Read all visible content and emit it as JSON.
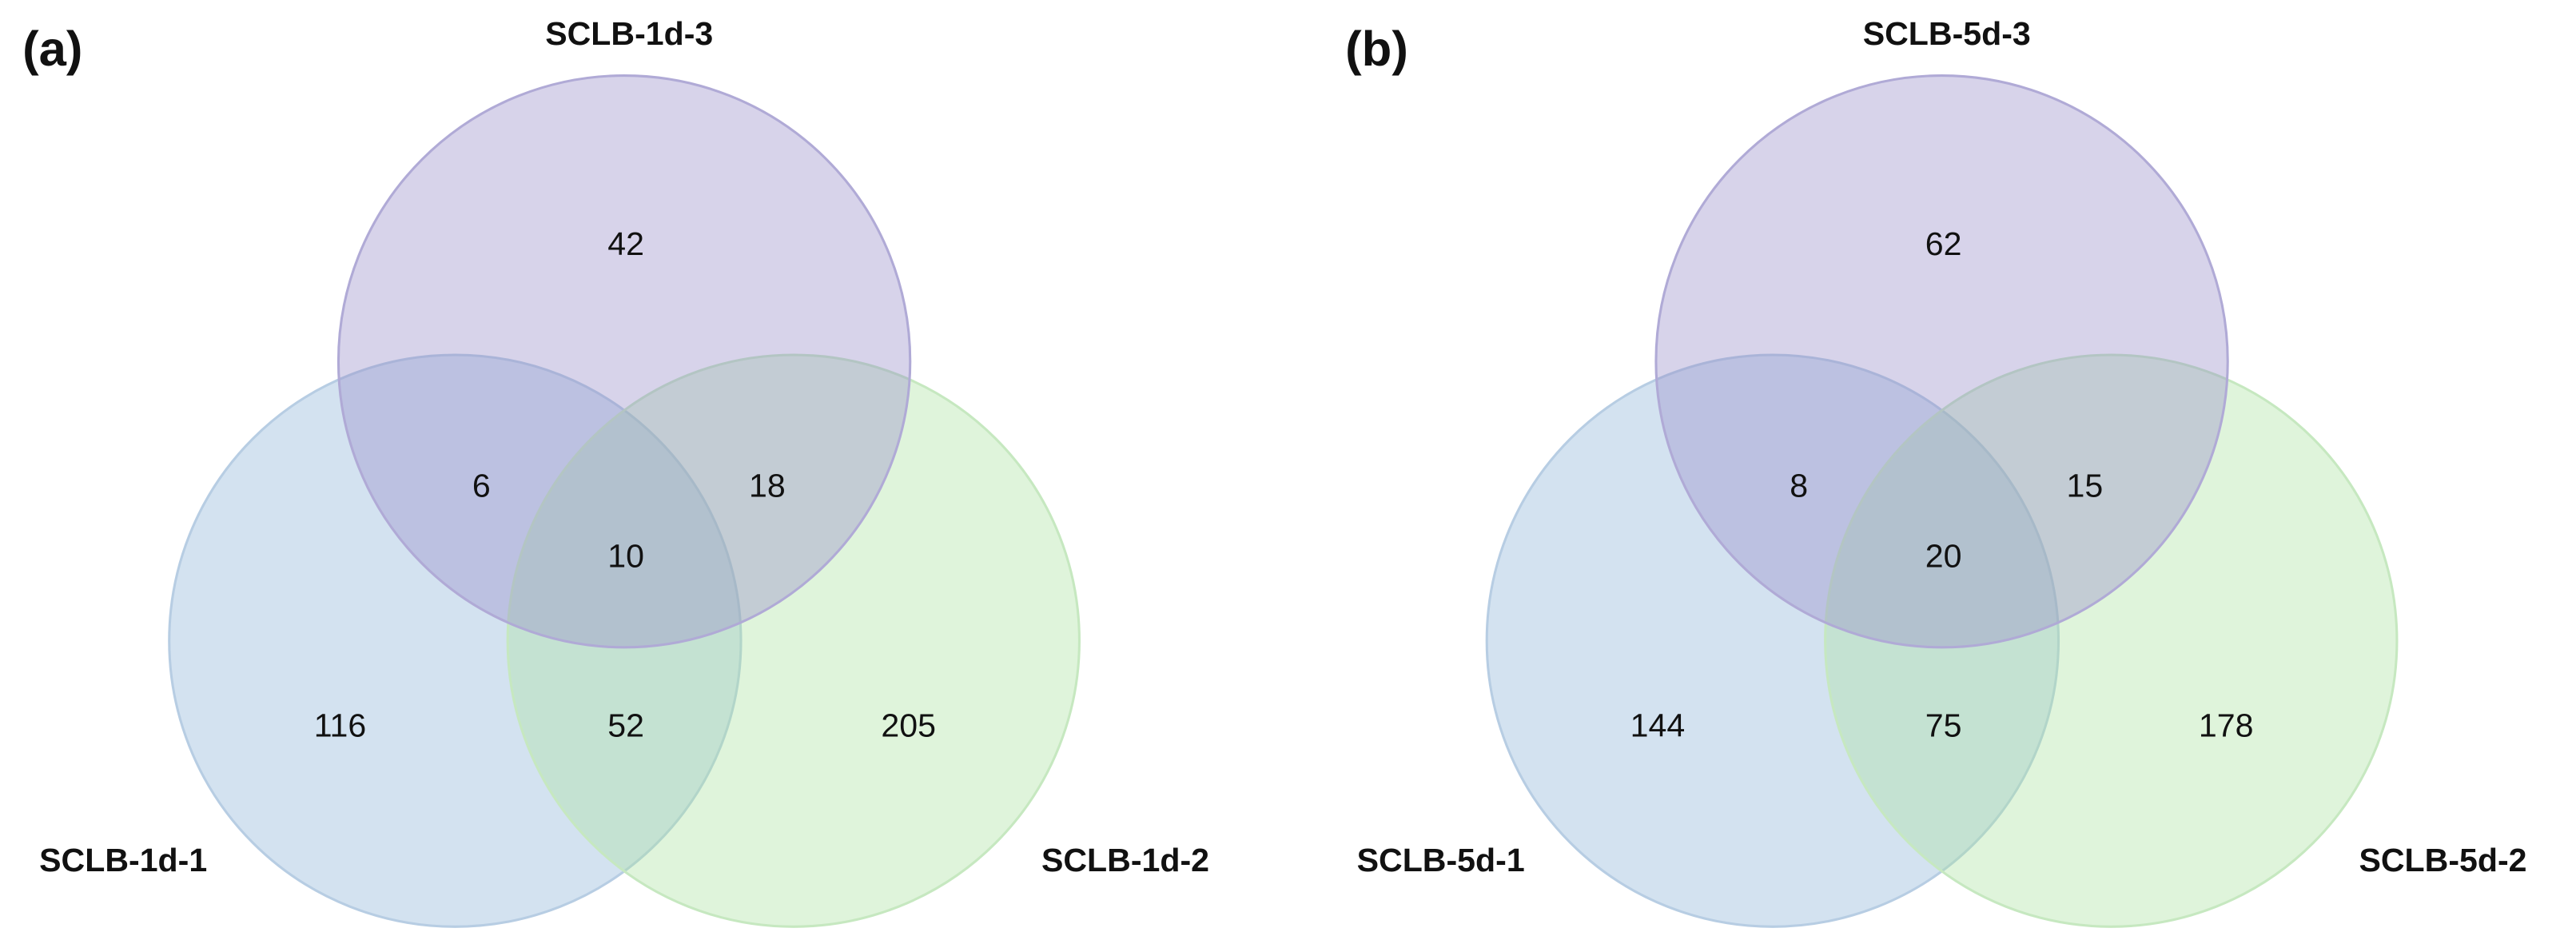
{
  "panels": [
    {
      "label": "(a)",
      "sets": [
        "SCLB-1d-1",
        "SCLB-1d-2",
        "SCLB-1d-3"
      ],
      "regions": [
        116,
        205,
        42,
        52,
        6,
        18,
        10
      ]
    },
    {
      "label": "(b)",
      "sets": [
        "SCLB-5d-1",
        "SCLB-5d-2",
        "SCLB-5d-3"
      ],
      "regions": [
        144,
        178,
        62,
        75,
        8,
        15,
        20
      ]
    }
  ]
}
